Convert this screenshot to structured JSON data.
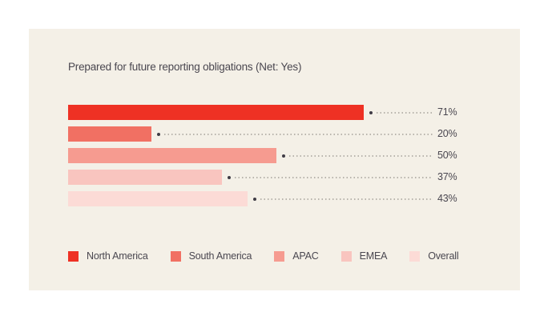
{
  "colors": {
    "page_background": "#ffffff",
    "card_background": "#f4f0e7",
    "text": "#4a4750",
    "leader_dot": "#3f3c45",
    "leader_line": "#b8b4ac"
  },
  "chart_data": {
    "type": "bar",
    "orientation": "horizontal",
    "title": "Prepared for future reporting obligations (Net: Yes)",
    "xlabel": "",
    "ylabel": "",
    "xlim": [
      0,
      100
    ],
    "grid": false,
    "value_suffix": "%",
    "legend_position": "bottom",
    "categories": [
      "North America",
      "South America",
      "APAC",
      "EMEA",
      "Overall"
    ],
    "values": [
      71,
      20,
      50,
      37,
      43
    ],
    "series": [
      {
        "name": "North America",
        "value": 71,
        "label": "71%",
        "color": "#ee3124"
      },
      {
        "name": "South America",
        "value": 20,
        "label": "20%",
        "color": "#f17063"
      },
      {
        "name": "APAC",
        "value": 50,
        "label": "50%",
        "color": "#f69b90"
      },
      {
        "name": "EMEA",
        "value": 37,
        "label": "37%",
        "color": "#f9c5bf"
      },
      {
        "name": "Overall",
        "value": 43,
        "label": "43%",
        "color": "#fcdbd6"
      }
    ]
  }
}
